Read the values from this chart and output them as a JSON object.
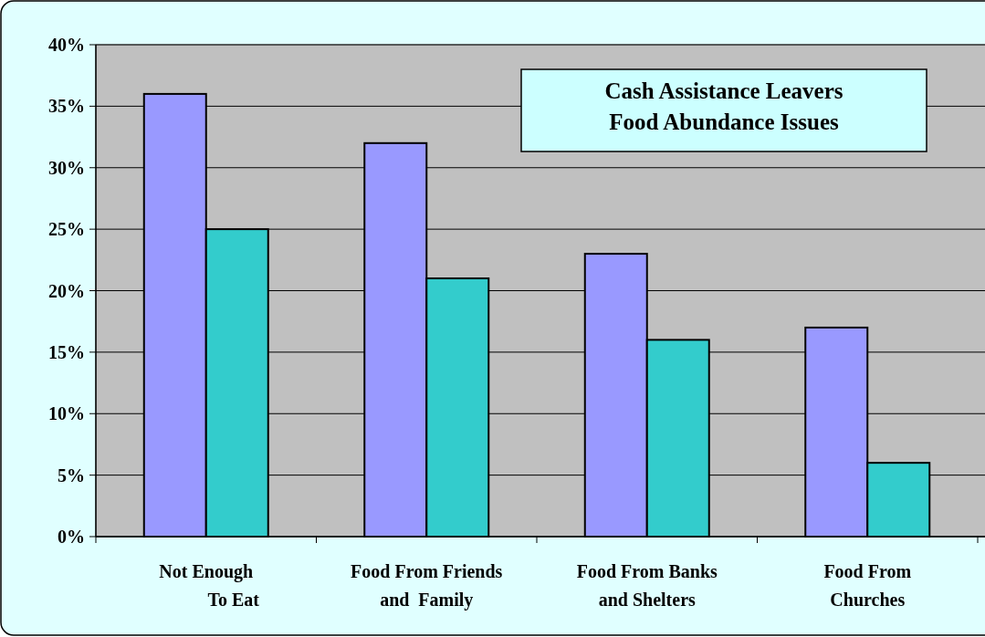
{
  "chart_data": {
    "type": "bar",
    "title": "Cash Assistance Leavers\nFood Abundance Issues",
    "categories": [
      "Not Enough\nTo Eat",
      "Food From Friends\nand  Family",
      "Food From Banks\nand Shelters",
      "Food From\nChurches"
    ],
    "series": [
      {
        "color": "#9999ff",
        "values": [
          36,
          32,
          23,
          17
        ]
      },
      {
        "color": "#33cccc",
        "values": [
          25,
          21,
          16,
          6
        ]
      }
    ],
    "ylim": [
      0,
      40
    ],
    "yticks": [
      {
        "value": 0,
        "label": "0%"
      },
      {
        "value": 5,
        "label": "5%"
      },
      {
        "value": 10,
        "label": "10%"
      },
      {
        "value": 15,
        "label": "15%"
      },
      {
        "value": 20,
        "label": "20%"
      },
      {
        "value": 25,
        "label": "25%"
      },
      {
        "value": 30,
        "label": "30%"
      },
      {
        "value": 35,
        "label": "35%"
      },
      {
        "value": 40,
        "label": "40%"
      }
    ],
    "grid": "y"
  }
}
